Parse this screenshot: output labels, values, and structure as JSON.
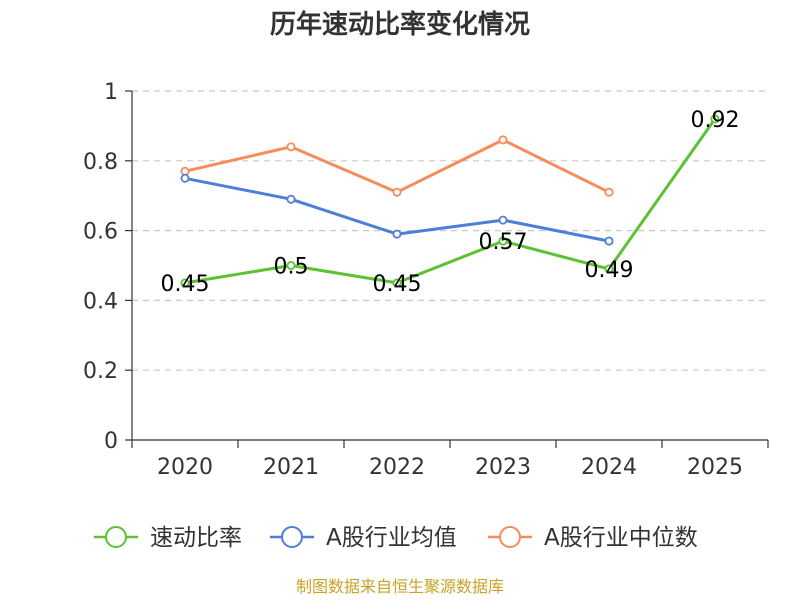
{
  "chart_data": {
    "type": "line",
    "title": "历年速动比率变化情况",
    "categories": [
      "2020",
      "2021",
      "2022",
      "2023",
      "2024",
      "2025"
    ],
    "ylim": [
      0,
      1
    ],
    "yticks": [
      0,
      0.2,
      0.4,
      0.6,
      0.8,
      1
    ],
    "ytick_labels": [
      "0",
      "0.2",
      "0.4",
      "0.6",
      "0.8",
      "1"
    ],
    "grid": "horizontal-dashed",
    "legend_position": "bottom",
    "series": [
      {
        "name": "速动比率",
        "color": "#5cc234",
        "values": [
          0.45,
          0.5,
          0.45,
          0.57,
          0.49,
          0.92
        ],
        "labels": [
          "0.45",
          "0.5",
          "0.45",
          "0.57",
          "0.49",
          "0.92"
        ],
        "show_labels": true
      },
      {
        "name": "A股行业均值",
        "color": "#4d7fd8",
        "values": [
          0.75,
          0.69,
          0.59,
          0.63,
          0.57,
          null
        ],
        "show_labels": false
      },
      {
        "name": "A股行业中位数",
        "color": "#f48d5b",
        "values": [
          0.77,
          0.84,
          0.71,
          0.86,
          0.71,
          null
        ],
        "show_labels": false
      }
    ],
    "source": "制图数据来自恒生聚源数据库"
  }
}
